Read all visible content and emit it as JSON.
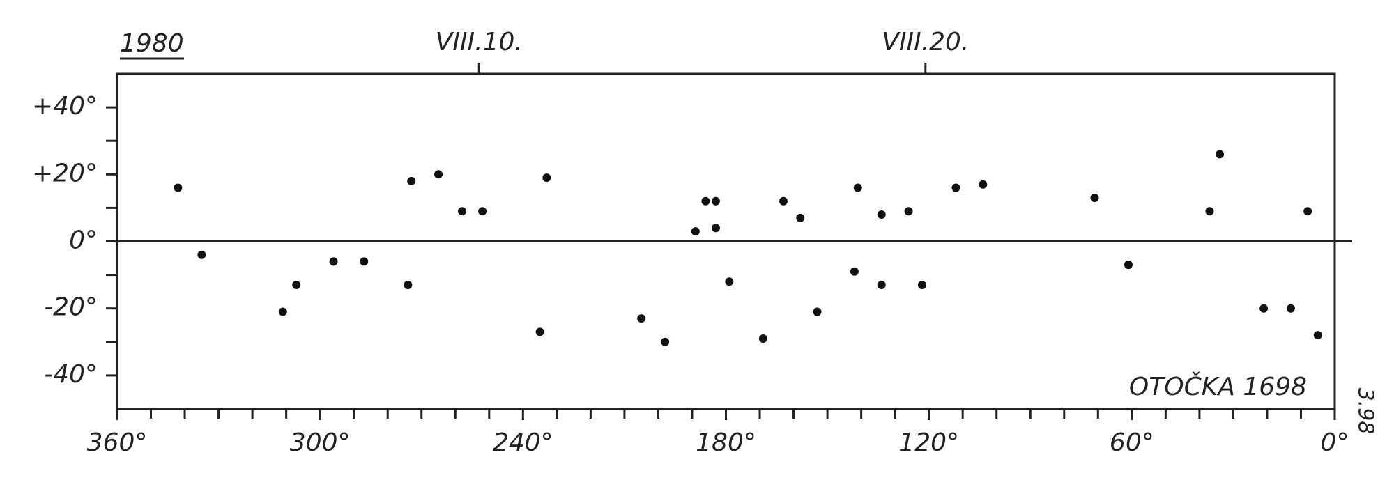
{
  "chart_data": {
    "type": "scatter",
    "title": "1980",
    "annotation": "OTOČKA 1698",
    "note": "3.98",
    "color": "#111111",
    "x": [
      342,
      273,
      265,
      258,
      252,
      233,
      186,
      183,
      189,
      183,
      163,
      158,
      141,
      134,
      126,
      112,
      104,
      71,
      34,
      37,
      8,
      296,
      287,
      307,
      311,
      274,
      235,
      205,
      198,
      179,
      169,
      153,
      142,
      134,
      122,
      61,
      21,
      13,
      5,
      335
    ],
    "values": [
      16,
      18,
      20,
      9,
      9,
      19,
      12,
      12,
      3,
      4,
      12,
      7,
      16,
      8,
      9,
      16,
      17,
      13,
      26,
      9,
      9,
      -6,
      -6,
      -13,
      -21,
      -13,
      -27,
      -23,
      -30,
      -12,
      -29,
      -21,
      -9,
      -13,
      -13,
      -7,
      -20,
      -20,
      -28,
      -4
    ],
    "xlim": [
      360,
      0
    ],
    "ylim": [
      -50,
      50
    ],
    "xticks": [
      {
        "value": 360,
        "label": "360°"
      },
      {
        "value": 300,
        "label": "300°"
      },
      {
        "value": 240,
        "label": "240°"
      },
      {
        "value": 180,
        "label": "180°"
      },
      {
        "value": 120,
        "label": "120°"
      },
      {
        "value": 60,
        "label": "60°"
      },
      {
        "value": 0,
        "label": "0°"
      }
    ],
    "xminorticks": [
      350,
      340,
      330,
      320,
      310,
      290,
      280,
      270,
      260,
      250,
      230,
      220,
      210,
      200,
      190,
      170,
      160,
      150,
      140,
      130,
      110,
      100,
      90,
      80,
      70,
      50,
      40,
      30,
      20,
      10
    ],
    "yticks": [
      {
        "value": 40,
        "label": "+40°"
      },
      {
        "value": 20,
        "label": "+20°"
      },
      {
        "value": 0,
        "label": "0°"
      },
      {
        "value": -20,
        "label": "-20°"
      },
      {
        "value": -40,
        "label": "-40°"
      }
    ],
    "yminorticks": [
      30,
      10,
      -10,
      -30
    ],
    "topticks": [
      {
        "value": 253,
        "label": "VIII.10."
      },
      {
        "value": 121,
        "label": "VIII.20."
      }
    ]
  }
}
